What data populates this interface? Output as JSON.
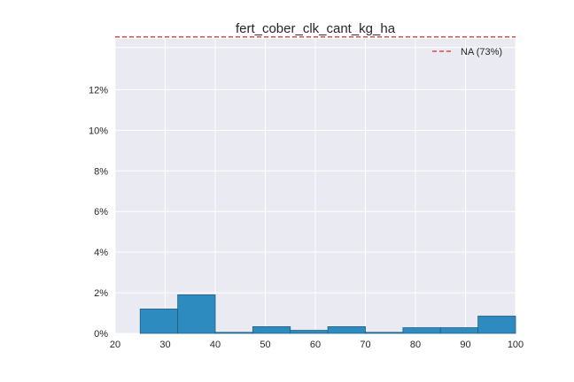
{
  "chart_data": {
    "type": "bar",
    "title": "fert_cober_clk_cant_kg_ha",
    "xlabel": "",
    "ylabel": "",
    "xlim": [
      20,
      100
    ],
    "ylim": [
      0,
      14.5
    ],
    "grid": true,
    "legend_position": "top-right",
    "x_ticks": [
      20,
      30,
      40,
      50,
      60,
      70,
      80,
      90,
      100
    ],
    "x_tick_labels": [
      "20",
      "30",
      "40",
      "50",
      "60",
      "70",
      "80",
      "90",
      "100"
    ],
    "y_ticks": [
      0,
      2,
      4,
      6,
      8,
      10,
      12
    ],
    "y_tick_labels": [
      "0%",
      "2%",
      "4%",
      "6%",
      "8%",
      "10%",
      "12%"
    ],
    "bins": [
      {
        "x0": 25.0,
        "x1": 32.5,
        "value": 1.2
      },
      {
        "x0": 32.5,
        "x1": 40.0,
        "value": 1.9
      },
      {
        "x0": 40.0,
        "x1": 47.5,
        "value": 0.05
      },
      {
        "x0": 47.5,
        "x1": 55.0,
        "value": 0.33
      },
      {
        "x0": 55.0,
        "x1": 62.5,
        "value": 0.15
      },
      {
        "x0": 62.5,
        "x1": 70.0,
        "value": 0.33
      },
      {
        "x0": 70.0,
        "x1": 77.5,
        "value": 0.05
      },
      {
        "x0": 77.5,
        "x1": 85.0,
        "value": 0.28
      },
      {
        "x0": 85.0,
        "x1": 92.5,
        "value": 0.28
      },
      {
        "x0": 92.5,
        "x1": 100.0,
        "value": 0.85
      }
    ],
    "na_line": {
      "label": "NA (73%)",
      "value": 73,
      "display_y": 14.6
    },
    "colors": {
      "bar": "#2e8bc0",
      "bar_edge": "#1f5f85",
      "na_line": "#e24a4a",
      "plot_bg": "#eaeaf2",
      "grid": "#ffffff"
    }
  }
}
